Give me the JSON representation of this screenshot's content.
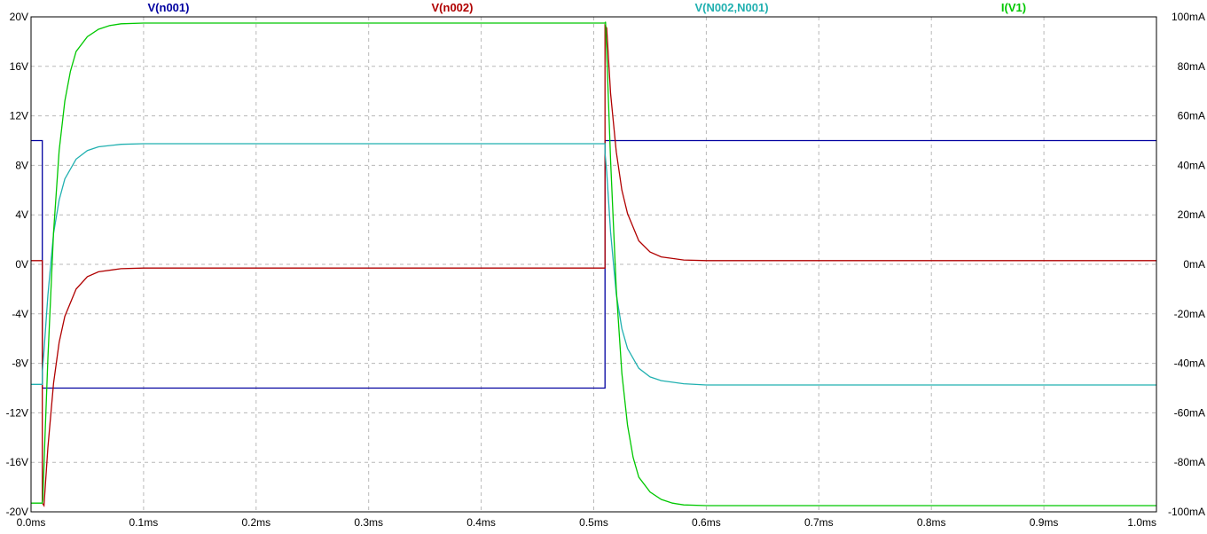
{
  "chart_data": {
    "type": "line",
    "title": "",
    "xlabel": "",
    "ylabel": "",
    "y2label": "",
    "grid": true,
    "legend_position": "top",
    "xlim": [
      0,
      1.0
    ],
    "ylim": [
      -20,
      20
    ],
    "y2lim": [
      -100,
      100
    ],
    "x_ticks": [
      "0.0ms",
      "0.1ms",
      "0.2ms",
      "0.3ms",
      "0.4ms",
      "0.5ms",
      "0.6ms",
      "0.7ms",
      "0.8ms",
      "0.9ms",
      "1.0ms"
    ],
    "y_ticks": [
      "20V",
      "16V",
      "12V",
      "8V",
      "4V",
      "0V",
      "-4V",
      "-8V",
      "-12V",
      "-16V",
      "-20V"
    ],
    "y2_ticks": [
      "100mA",
      "80mA",
      "60mA",
      "40mA",
      "20mA",
      "0mA",
      "-20mA",
      "-40mA",
      "-60mA",
      "-80mA",
      "-100mA"
    ],
    "series": [
      {
        "name": "V(n001)",
        "color": "#0000a0",
        "axis": "left",
        "x": [
          0.0,
          0.01,
          0.01,
          0.51,
          0.51,
          1.0
        ],
        "y": [
          10,
          10,
          -10,
          -10,
          10,
          10
        ]
      },
      {
        "name": "V(n002)",
        "color": "#b00000",
        "axis": "left",
        "x": [
          0.0,
          0.01,
          0.01,
          0.0115,
          0.015,
          0.02,
          0.025,
          0.03,
          0.04,
          0.05,
          0.06,
          0.08,
          0.1,
          0.5,
          0.51,
          0.51,
          0.5115,
          0.515,
          0.52,
          0.525,
          0.53,
          0.54,
          0.55,
          0.56,
          0.58,
          0.6,
          1.0
        ],
        "y": [
          0.3,
          0.3,
          -19.3,
          -19.5,
          -14.8,
          -9.6,
          -6.3,
          -4.2,
          -2.0,
          -1.0,
          -0.6,
          -0.35,
          -0.3,
          -0.3,
          -0.3,
          19.3,
          19.1,
          13.8,
          9.1,
          6.0,
          4.1,
          1.9,
          1.0,
          0.6,
          0.35,
          0.3,
          0.3
        ]
      },
      {
        "name": "V(N002,N001)",
        "color": "#20b0b0",
        "axis": "left",
        "x": [
          0.0,
          0.01,
          0.01,
          0.0115,
          0.015,
          0.02,
          0.025,
          0.03,
          0.04,
          0.05,
          0.06,
          0.08,
          0.1,
          0.5,
          0.51,
          0.51,
          0.5115,
          0.515,
          0.52,
          0.525,
          0.53,
          0.54,
          0.55,
          0.56,
          0.58,
          0.6,
          1.0
        ],
        "y": [
          -9.7,
          -9.7,
          -8.7,
          -7.0,
          -2.5,
          2.5,
          5.2,
          6.9,
          8.5,
          9.2,
          9.5,
          9.7,
          9.75,
          9.75,
          9.75,
          9.0,
          7.5,
          2.6,
          -2.4,
          -5.2,
          -6.8,
          -8.4,
          -9.1,
          -9.4,
          -9.65,
          -9.75,
          -9.75
        ]
      },
      {
        "name": "I(V1)",
        "color": "#00c800",
        "axis": "right",
        "x": [
          0.0,
          0.01,
          0.0105,
          0.012,
          0.015,
          0.02,
          0.025,
          0.03,
          0.035,
          0.04,
          0.05,
          0.06,
          0.07,
          0.08,
          0.1,
          0.5,
          0.51,
          0.5105,
          0.512,
          0.515,
          0.52,
          0.525,
          0.53,
          0.535,
          0.54,
          0.55,
          0.56,
          0.57,
          0.58,
          0.6,
          1.0
        ],
        "y": [
          -96.5,
          -96.5,
          -95,
          -75,
          -38,
          13,
          46,
          66,
          78,
          86,
          92,
          95,
          96.5,
          97.2,
          97.5,
          97.5,
          97.5,
          98,
          80,
          42,
          -10,
          -44,
          -65,
          -78,
          -86,
          -92,
          -95,
          -96.5,
          -97.2,
          -97.5,
          -97.5
        ]
      }
    ]
  }
}
